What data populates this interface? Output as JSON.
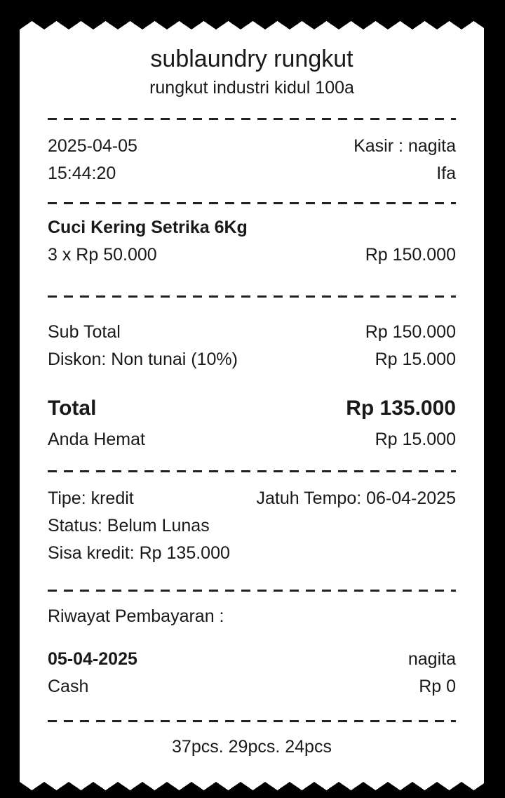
{
  "header": {
    "store_name": "sublaundry rungkut",
    "address": "rungkut industri kidul 100a"
  },
  "meta": {
    "date": "2025-04-05",
    "time": "15:44:20",
    "cashier": "Kasir : nagita",
    "operator": "Ifa"
  },
  "items": [
    {
      "name": "Cuci Kering Setrika 6Kg",
      "qty_price": "3 x Rp 50.000",
      "amount": "Rp 150.000"
    }
  ],
  "summary": {
    "subtotal_label": "Sub Total",
    "subtotal_value": "Rp 150.000",
    "discount_label": "Diskon: Non tunai (10%)",
    "discount_value": "Rp 15.000",
    "total_label": "Total",
    "total_value": "Rp 135.000",
    "savings_label": "Anda Hemat",
    "savings_value": "Rp 15.000"
  },
  "credit": {
    "type": "Tipe: kredit",
    "due": "Jatuh Tempo: 06-04-2025",
    "status": "Status: Belum Lunas",
    "remaining": "Sisa kredit: Rp 135.000"
  },
  "payment_history": {
    "title": "Riwayat Pembayaran :",
    "entries": [
      {
        "date": "05-04-2025",
        "by": "nagita",
        "method": "Cash",
        "amount": "Rp 0"
      }
    ]
  },
  "footer": {
    "pieces": "37pcs. 29pcs. 24pcs"
  },
  "colors": {
    "background": "#000000",
    "paper": "#ffffff",
    "ink": "#191919"
  }
}
